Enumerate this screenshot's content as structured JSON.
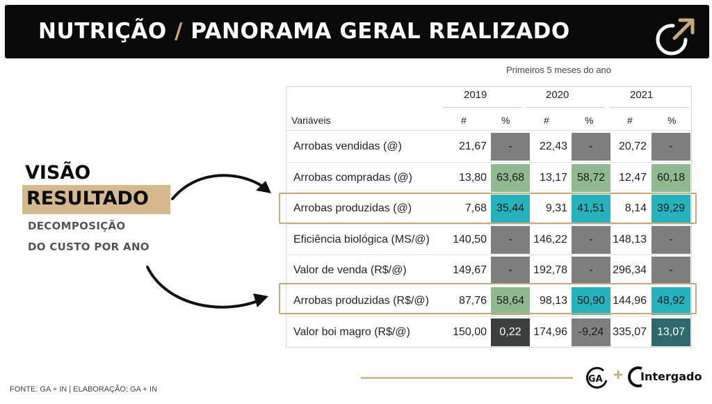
{
  "header": {
    "title_part1": "NUTRIÇÃO",
    "slash": "/",
    "title_part2": "PANORAMA GERAL REALIZADO",
    "icon": "arrow-up-right-circle-icon"
  },
  "subtitle": "Primeiros 5 meses do ano",
  "table": {
    "variables_header": "Variáveis",
    "years": [
      "2019",
      "2020",
      "2021"
    ],
    "col_num": "#",
    "col_pct": "%",
    "rows": [
      {
        "label": "Arrobas vendidas (@)",
        "v2019": "21,67",
        "p2019": "-",
        "v2020": "22,43",
        "p2020": "-",
        "v2021": "20,72",
        "p2021": "-"
      },
      {
        "label": "Arrobas compradas (@)",
        "v2019": "13,80",
        "p2019": "63,68",
        "v2020": "13,17",
        "p2020": "58,72",
        "v2021": "12,47",
        "p2021": "60,18"
      },
      {
        "label": "Arrobas produzidas (@)",
        "v2019": "7,68",
        "p2019": "35,44",
        "v2020": "9,31",
        "p2020": "41,51",
        "v2021": "8,14",
        "p2021": "39,29"
      },
      {
        "label": "Eficiência biológica (MS/@)",
        "v2019": "140,50",
        "p2019": "-",
        "v2020": "146,22",
        "p2020": "-",
        "v2021": "148,13",
        "p2021": "-"
      },
      {
        "label": "Valor de venda (R$/@)",
        "v2019": "149,67",
        "p2019": "-",
        "v2020": "192,78",
        "p2020": "-",
        "v2021": "296,34",
        "p2021": "-"
      },
      {
        "label": "Arrobas produzidas (R$/@)",
        "v2019": "87,76",
        "p2019": "58,64",
        "v2020": "98,13",
        "p2020": "50,90",
        "v2021": "144,96",
        "p2021": "48,92"
      },
      {
        "label": "Valor boi magro (R$/@)",
        "v2019": "150,00",
        "p2019": "0,22",
        "v2020": "174,96",
        "p2020": "-9,24",
        "v2021": "335,07",
        "p2021": "13,07"
      }
    ],
    "cell_colors": {
      "gray": "#7f7f7f",
      "green": "#8fb98f",
      "teal": "#27b3be",
      "dark": "#3b3f3e",
      "dark_teal": "#2e6a6d",
      "highlight_border": "#c9a97a"
    }
  },
  "left_panel": {
    "line1": "VISÃO",
    "line2": "RESULTADO",
    "line3": "DECOMPOSIÇÃO",
    "line4": "DO CUSTO POR ANO",
    "accent": "#d3b98d"
  },
  "footer": {
    "source": "FONTE: GA + IN    |    ELABORAÇÃO: GA + IN",
    "logo_ga": "GA",
    "plus": "+",
    "logo_intergado": "Intergado"
  }
}
